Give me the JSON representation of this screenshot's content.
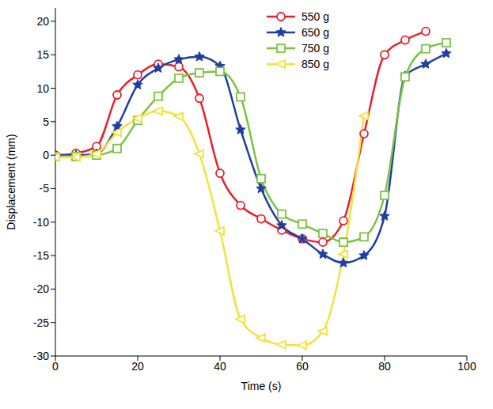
{
  "chart_data": {
    "type": "line",
    "x_label": "Time (s)",
    "y_label": "Displacement (mm)",
    "xlim": [
      0,
      100
    ],
    "xticks": [
      0,
      20,
      40,
      60,
      80,
      100
    ],
    "ylim": [
      -30,
      22
    ],
    "yticks": [
      -30,
      -25,
      -20,
      -15,
      -10,
      -5,
      0,
      5,
      10,
      15,
      20
    ],
    "grid": false,
    "legend": "top",
    "series": [
      {
        "name": "550 g",
        "color": "#e8202a",
        "marker": "circle",
        "x": [
          0,
          5,
          10,
          15,
          20,
          25,
          30,
          35,
          40,
          45,
          50,
          55,
          60,
          65,
          70,
          75,
          80,
          85,
          90
        ],
        "values": [
          0,
          0.3,
          1.3,
          9,
          12,
          13.6,
          13.2,
          8.5,
          -2.7,
          -7.5,
          -9.5,
          -11.2,
          -12.5,
          -13,
          -9.8,
          3.2,
          15,
          17.2,
          18.5
        ]
      },
      {
        "name": "650 g",
        "color": "#1f3f9f",
        "marker": "star",
        "x": [
          0,
          5,
          10,
          15,
          20,
          25,
          30,
          35,
          40,
          45,
          50,
          55,
          60,
          65,
          70,
          75,
          80,
          85,
          90,
          95
        ],
        "values": [
          0,
          0,
          0.2,
          4.3,
          10.5,
          13,
          14.3,
          14.7,
          13.3,
          3.8,
          -5,
          -10.5,
          -12.5,
          -14.8,
          -16.1,
          -15,
          -9.1,
          11.8,
          13.6,
          15.2
        ]
      },
      {
        "name": "750 g",
        "color": "#7cc242",
        "marker": "square",
        "x": [
          0,
          5,
          10,
          15,
          20,
          25,
          30,
          35,
          40,
          45,
          50,
          55,
          60,
          65,
          70,
          75,
          80,
          85,
          90,
          95
        ],
        "values": [
          -0.2,
          -0.2,
          0,
          1,
          5.2,
          8.8,
          11.5,
          12.3,
          12.5,
          8.7,
          -3.5,
          -8.8,
          -10.3,
          -11.7,
          -13,
          -12.2,
          -6,
          11.7,
          15.9,
          16.8
        ]
      },
      {
        "name": "850 g",
        "color": "#f2e33a",
        "marker": "triangle-left",
        "x": [
          0,
          5,
          10,
          15,
          20,
          25,
          30,
          35,
          40,
          45,
          50,
          55,
          60,
          65,
          70,
          75
        ],
        "values": [
          -0.3,
          -0.3,
          0.2,
          3.4,
          5.5,
          6.6,
          5.8,
          0.2,
          -11.3,
          -24.5,
          -27.3,
          -28.3,
          -28.4,
          -26.3,
          -14.8,
          5.9
        ]
      }
    ]
  }
}
